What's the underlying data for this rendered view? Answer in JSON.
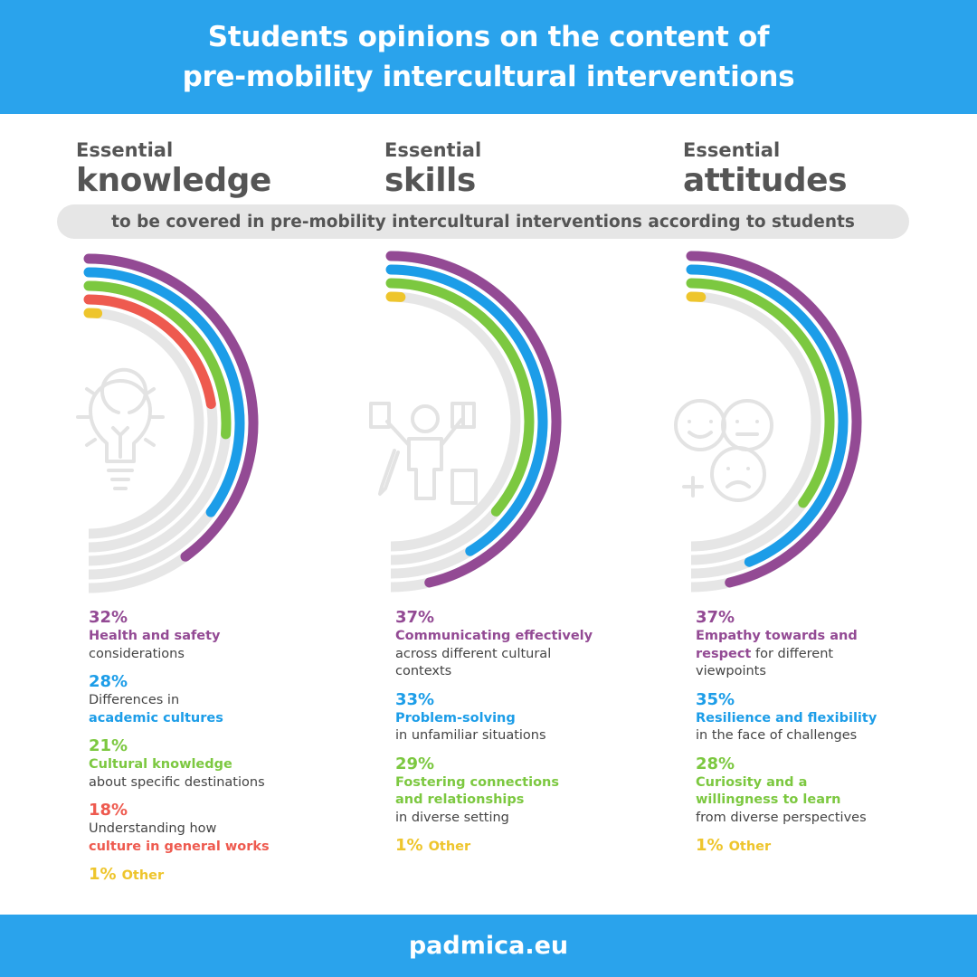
{
  "title": {
    "line1": "Students opinions on the content of",
    "line2": "pre-mobility intercultural interventions"
  },
  "subtitle": "to be covered in pre-mobility intercultural interventions according to students",
  "footer": "padmica.eu",
  "colors": {
    "header": "#2aa3ec",
    "purple": "#934a94",
    "blue": "#1c9de8",
    "green": "#7cc840",
    "red": "#ee5a4f",
    "yellow": "#eec52c",
    "track": "#e6e6e6"
  },
  "columns": [
    {
      "pre": "Essential",
      "heading": "knowledge",
      "icon": "lightbulb-icon",
      "items": [
        {
          "pct": "32%",
          "color": "purple",
          "bold_first": true,
          "bold": "Health and safety",
          "rest": "considerations"
        },
        {
          "pct": "28%",
          "color": "blue",
          "bold_first": false,
          "bold": "academic cultures",
          "rest": "Differences in"
        },
        {
          "pct": "21%",
          "color": "green",
          "bold_first": true,
          "bold": "Cultural knowledge",
          "rest": "about specific destinations"
        },
        {
          "pct": "18%",
          "color": "red",
          "bold_first": false,
          "bold": "culture in general works",
          "rest": "Understanding how"
        }
      ],
      "other": {
        "pct": "1%",
        "label": "Other"
      }
    },
    {
      "pre": "Essential",
      "heading": "skills",
      "icon": "multitasking-person-icon",
      "items": [
        {
          "pct": "37%",
          "color": "purple",
          "bold_first": true,
          "bold": "Communicating effectively",
          "rest": "across different cultural contexts"
        },
        {
          "pct": "33%",
          "color": "blue",
          "bold_first": true,
          "bold": "Problem-solving",
          "rest": "in unfamiliar situations"
        },
        {
          "pct": "29%",
          "color": "green",
          "bold_first": true,
          "bold": "Fostering connections and relationships",
          "rest": "in diverse setting"
        }
      ],
      "other": {
        "pct": "1%",
        "label": "Other"
      }
    },
    {
      "pre": "Essential",
      "heading": "attitudes",
      "icon": "emotion-faces-icon",
      "items": [
        {
          "pct": "37%",
          "color": "purple",
          "bold_first": true,
          "bold": "Empathy towards and respect",
          "rest": "for different viewpoints"
        },
        {
          "pct": "35%",
          "color": "blue",
          "bold_first": true,
          "bold": "Resilience and flexibility",
          "rest": "in the face of challenges"
        },
        {
          "pct": "28%",
          "color": "green",
          "bold_first": true,
          "bold": "Curiosity and a willingness to learn",
          "rest": "from diverse perspectives"
        }
      ],
      "other": {
        "pct": "1%",
        "label": "Other"
      }
    }
  ],
  "chart_data": [
    {
      "type": "radial-bar",
      "title": "Essential knowledge",
      "categories": [
        "Health and safety considerations",
        "Differences in academic cultures",
        "Cultural knowledge about specific destinations",
        "Understanding how culture in general works",
        "Other"
      ],
      "values": [
        32,
        28,
        21,
        18,
        1
      ],
      "max": 40,
      "colors": [
        "#934a94",
        "#1c9de8",
        "#7cc840",
        "#ee5a4f",
        "#eec52c"
      ]
    },
    {
      "type": "radial-bar",
      "title": "Essential skills",
      "categories": [
        "Communicating effectively across different cultural contexts",
        "Problem-solving in unfamiliar situations",
        "Fostering connections and relationships in diverse setting",
        "Other"
      ],
      "values": [
        37,
        33,
        29,
        1
      ],
      "max": 40,
      "colors": [
        "#934a94",
        "#1c9de8",
        "#7cc840",
        "#eec52c"
      ]
    },
    {
      "type": "radial-bar",
      "title": "Essential attitudes",
      "categories": [
        "Empathy towards and respect for different viewpoints",
        "Resilience and flexibility in the face of challenges",
        "Curiosity and a willingness to learn from diverse perspectives",
        "Other"
      ],
      "values": [
        37,
        35,
        28,
        1
      ],
      "max": 40,
      "colors": [
        "#934a94",
        "#1c9de8",
        "#7cc840",
        "#eec52c"
      ]
    }
  ]
}
